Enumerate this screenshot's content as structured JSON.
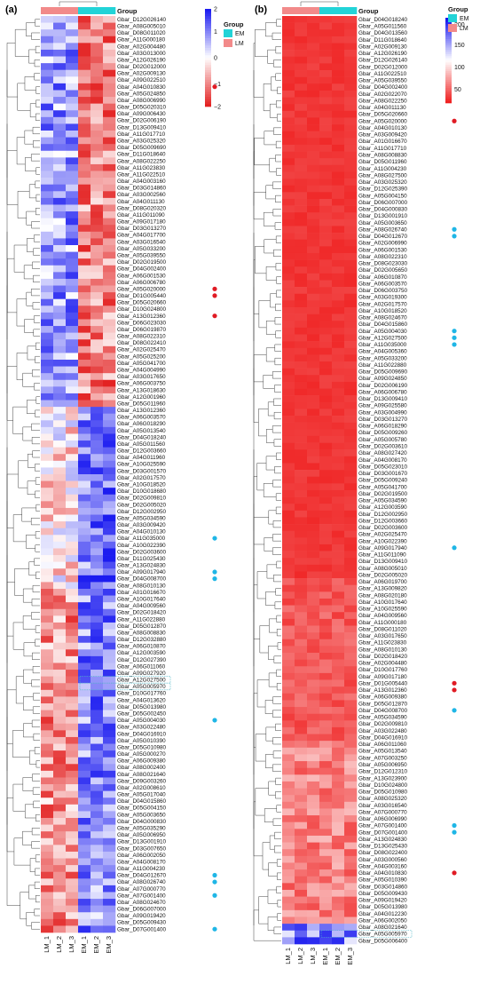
{
  "panel_a": {
    "label": "(a)",
    "group_title": "Group",
    "group_labels": [
      "EM",
      "LM"
    ],
    "group_colors": {
      "EM": "#22d3d7",
      "LM": "#f28a8a"
    },
    "scale_ticks": [
      "2",
      "1",
      "0",
      "−1",
      "−2"
    ],
    "scale_colors": [
      "#e32222",
      "#ffffff",
      "#1c1cf0"
    ]
  },
  "panel_b": {
    "label": "(b)",
    "group_title": "Group",
    "group_labels": [
      "EM",
      "LM"
    ],
    "group_colors": {
      "EM": "#22d3d7",
      "LM": "#f28a8a"
    },
    "scale_ticks": [
      "200",
      "150",
      "100",
      "50"
    ],
    "scale_colors": [
      "#ef2020",
      "#ffffff",
      "#1212ee"
    ]
  },
  "chart_data": [
    {
      "type": "heatmap",
      "panel": "(a)",
      "columns": [
        "LM_1",
        "LM_2",
        "LM_3",
        "EM_1",
        "EM_2",
        "EM_3"
      ],
      "column_groups": [
        "LM",
        "LM",
        "LM",
        "EM",
        "EM",
        "EM"
      ],
      "rows": [
        "Gbar_D12G026140",
        "Gbar_A08G005010",
        "Gbar_D08G011020",
        "Gbar_A11G000180",
        "Gbar_A02G004480",
        "Gbar_A03G013000",
        "Gbar_A12G026190",
        "Gbar_D02G012000",
        "Gbar_A02G009130",
        "Gbar_A09G022510",
        "Gbar_A04G010830",
        "Gbar_A05G024850",
        "Gbar_A08G006990",
        "Gbar_D05G020310",
        "Gbar_A09G006430",
        "Gbar_D02G006190",
        "Gbar_D13G009410",
        "Gbar_A11G017710",
        "Gbar_A03G025320",
        "Gbar_D05G009690",
        "Gbar_D11G018640",
        "Gbar_A08G022250",
        "Gbar_A11G023830",
        "Gbar_A11G022510",
        "Gbar_A04G003160",
        "Gbar_D03G014860",
        "Gbar_A03G002560",
        "Gbar_A04G011130",
        "Gbar_D08G020320",
        "Gbar_A11G011090",
        "Gbar_A09G017180",
        "Gbar_D03G013270",
        "Gbar_A04G017700",
        "Gbar_A03G016540",
        "Gbar_A05G033200",
        "Gbar_A05G039550",
        "Gbar_D02G019500",
        "Gbar_D04G002400",
        "Gbar_A06G001530",
        "Gbar_A06G006780",
        "Gbar_A05G020000",
        "Gbar_D01G005440",
        "Gbar_D05G020660",
        "Gbar_D10G024800",
        "Gbar_A13G012360",
        "Gbar_D06G023030",
        "Gbar_D06G019870",
        "Gbar_A08G022310",
        "Gbar_D08G022410",
        "Gbar_A02G025470",
        "Gbar_A05G025200",
        "Gbar_A05G041700",
        "Gbar_A04G004990",
        "Gbar_A03G017650",
        "Gbar_A06G003750",
        "Gbar_A13G018630",
        "Gbar_A12G001960",
        "Gbar_D05G011960",
        "Gbar_A13G012360",
        "Gbar_A06G003570",
        "Gbar_A06G018290",
        "Gbar_A05G013540",
        "Gbar_D04G018240",
        "Gbar_A05G011560",
        "Gbar_D12G003660",
        "Gbar_A04G011960",
        "Gbar_A10G025590",
        "Gbar_D03G001570",
        "Gbar_A02G017570",
        "Gbar_A10G018520",
        "Gbar_D10G018680",
        "Gbar_D02G009810",
        "Gbar_D02G005020",
        "Gbar_D12G002950",
        "Gbar_A05G034590",
        "Gbar_A03G009420",
        "Gbar_A04G010130",
        "Gbar_A11G035000",
        "Gbar_A10G022390",
        "Gbar_D02G003600",
        "Gbar_D11G025430",
        "Gbar_A13G024830",
        "Gbar_A09G017940",
        "Gbar_D04G008700",
        "Gbar_A08G010130",
        "Gbar_A01G016670",
        "Gbar_A10G017640",
        "Gbar_A04G009560",
        "Gbar_D02G018420",
        "Gbar_A11G022880",
        "Gbar_D05G012870",
        "Gbar_A08G008830",
        "Gbar_D12G032880",
        "Gbar_A06G010870",
        "Gbar_A12G003590",
        "Gbar_D12G027390",
        "Gbar_A06G011060",
        "Gbar_A09G027920",
        "Gbar_A12G027500",
        "Gbar_A05G005970",
        "Gbar_D10G017760",
        "Gbar_A04G013620",
        "Gbar_D05G013980",
        "Gbar_D05G002450",
        "Gbar_A05G004030",
        "Gbar_A03G022480",
        "Gbar_D04G016910",
        "Gbar_A05G010390",
        "Gbar_D05G010980",
        "Gbar_A05G000270",
        "Gbar_A06G009380",
        "Gbar_A08G002400",
        "Gbar_A08G021640",
        "Gbar_D09G003260",
        "Gbar_A02G008610",
        "Gbar_A05G017040",
        "Gbar_D04G015860",
        "Gbar_D05G004150",
        "Gbar_A05G003650",
        "Gbar_D04G000830",
        "Gbar_A05G035290",
        "Gbar_A05G006950",
        "Gbar_D13G001910",
        "Gbar_D03G007650",
        "Gbar_A06G002050",
        "Gbar_A04G008170",
        "Gbar_A11G004230",
        "Gbar_D04G012670",
        "Gbar_A08G026740",
        "Gbar_A07G000770",
        "Gbar_A07G001400",
        "Gbar_A08G024670",
        "Gbar_D06G007000",
        "Gbar_A09G019420",
        "Gbar_D05G009430",
        "Gbar_D07G001400"
      ],
      "values": [],
      "values_note": "",
      "color_scale": {
        "min": -2,
        "max": 2,
        "low": "blue",
        "mid": "white",
        "high": "red"
      },
      "marked_rows": [
        {
          "gene": "Gbar_A04G010830",
          "marker": "red"
        },
        {
          "gene": "Gbar_A05G020000",
          "marker": "red"
        },
        {
          "gene": "Gbar_D01G005440",
          "marker": "red"
        },
        {
          "gene": "Gbar_A13G012360",
          "marker": "red"
        },
        {
          "gene": "Gbar_A11G035000",
          "marker": "cyan"
        },
        {
          "gene": "Gbar_A09G017940",
          "marker": "cyan"
        },
        {
          "gene": "Gbar_D04G008700",
          "marker": "cyan"
        },
        {
          "gene": "Gbar_A05G004030",
          "marker": "cyan"
        },
        {
          "gene": "Gbar_D04G012670",
          "marker": "cyan"
        },
        {
          "gene": "Gbar_A08G026740",
          "marker": "cyan"
        },
        {
          "gene": "Gbar_A07G001400",
          "marker": "cyan"
        },
        {
          "gene": "Gbar_D07G001400",
          "marker": "cyan"
        }
      ],
      "boxed_rows": [
        "Gbar_A12G027500",
        "Gbar_A05G005970"
      ]
    },
    {
      "type": "heatmap",
      "panel": "(b)",
      "columns": [
        "LM_1",
        "LM_2",
        "LM_3",
        "EM_1",
        "EM_2",
        "EM_3"
      ],
      "column_groups": [
        "LM",
        "LM",
        "LM",
        "EM",
        "EM",
        "EM"
      ],
      "rows": [
        "Gbar_D04G018240",
        "Gbar_A05G011560",
        "Gbar_D04G013560",
        "Gbar_D11G018640",
        "Gbar_A02G009130",
        "Gbar_A12G026190",
        "Gbar_D12G026140",
        "Gbar_D02G012000",
        "Gbar_A11G022510",
        "Gbar_A05G039550",
        "Gbar_D04G002400",
        "Gbar_A02G022070",
        "Gbar_A08G022250",
        "Gbar_A04G011130",
        "Gbar_D05G020660",
        "Gbar_A05G020000",
        "Gbar_A04G010130",
        "Gbar_A03G009420",
        "Gbar_A01G016670",
        "Gbar_A11G017710",
        "Gbar_A08G008830",
        "Gbar_D05G011960",
        "Gbar_A11G004230",
        "Gbar_A08G027500",
        "Gbar_A03G025320",
        "Gbar_D12G025390",
        "Gbar_A05G004150",
        "Gbar_D06G007000",
        "Gbar_D04G000830",
        "Gbar_D13G001910",
        "Gbar_A05G003650",
        "Gbar_A08G026740",
        "Gbar_D04G012670",
        "Gbar_A02G006990",
        "Gbar_A06G001530",
        "Gbar_A08G022310",
        "Gbar_D08G023030",
        "Gbar_D02G005650",
        "Gbar_A06G010870",
        "Gbar_A06G003570",
        "Gbar_D06G003750",
        "Gbar_A03G019300",
        "Gbar_A02G017570",
        "Gbar_A10G018520",
        "Gbar_A08G024670",
        "Gbar_D04G015860",
        "Gbar_A05G004030",
        "Gbar_A12G027500",
        "Gbar_A11G035000",
        "Gbar_A04G005360",
        "Gbar_A05G033200",
        "Gbar_A11G022880",
        "Gbar_D05G009690",
        "Gbar_A09G024850",
        "Gbar_D02G006190",
        "Gbar_A06G006780",
        "Gbar_D13G009410",
        "Gbar_A09G025580",
        "Gbar_A03G004990",
        "Gbar_D03G013270",
        "Gbar_A06G018290",
        "Gbar_D05G009260",
        "Gbar_A05G005780",
        "Gbar_D02G003610",
        "Gbar_A08G027420",
        "Gbar_A04G008170",
        "Gbar_D05G023010",
        "Gbar_D03G001670",
        "Gbar_D05G009240",
        "Gbar_A05G041700",
        "Gbar_D02G019500",
        "Gbar_A05G034590",
        "Gbar_A12G003590",
        "Gbar_D12G002950",
        "Gbar_D12G003660",
        "Gbar_D02G003600",
        "Gbar_A02G025470",
        "Gbar_A10G022390",
        "Gbar_A09G017940",
        "Gbar_A11G011090",
        "Gbar_D13G009410",
        "Gbar_A08G005010",
        "Gbar_D02G005020",
        "Gbar_A06G019700",
        "Gbar_A13G009820",
        "Gbar_A08G020180",
        "Gbar_A10G017640",
        "Gbar_A10G025590",
        "Gbar_A04G009560",
        "Gbar_A11G000180",
        "Gbar_D08G011020",
        "Gbar_A03G017650",
        "Gbar_A11G023830",
        "Gbar_A08G010130",
        "Gbar_D02G018420",
        "Gbar_A02G004480",
        "Gbar_D10G017760",
        "Gbar_A09G017180",
        "Gbar_D01G005440",
        "Gbar_A13G012360",
        "Gbar_A06G009380",
        "Gbar_D05G012870",
        "Gbar_D04G008700",
        "Gbar_A05G034590",
        "Gbar_D02G009810",
        "Gbar_A03G022480",
        "Gbar_D04G016910",
        "Gbar_A06G011060",
        "Gbar_A05G013540",
        "Gbar_A07G003250",
        "Gbar_A05G006950",
        "Gbar_D12G012310",
        "Gbar_A13G023900",
        "Gbar_D10G024800",
        "Gbar_D05G010980",
        "Gbar_A08G025320",
        "Gbar_A03G016540",
        "Gbar_A07G000770",
        "Gbar_A06G006990",
        "Gbar_A07G001400",
        "Gbar_D07G001400",
        "Gbar_A13G024830",
        "Gbar_D13G025430",
        "Gbar_D08G022400",
        "Gbar_A03G000560",
        "Gbar_A04G003160",
        "Gbar_A04G010830",
        "Gbar_A05G010390",
        "Gbar_D03G014860",
        "Gbar_D05G009430",
        "Gbar_A09G019420",
        "Gbar_D05G013980",
        "Gbar_A04G012230",
        "Gbar_A06G002050",
        "Gbar_A08G021640",
        "Gbar_A05G005970",
        "Gbar_D05G006400"
      ],
      "values": [],
      "values_note": "",
      "color_scale": {
        "min": 25,
        "max": 240,
        "low": "blue",
        "mid": "white",
        "high": "red"
      },
      "marked_rows": [
        {
          "gene": "Gbar_A05G020000",
          "marker": "red"
        },
        {
          "gene": "Gbar_A08G026740",
          "marker": "cyan"
        },
        {
          "gene": "Gbar_D04G012670",
          "marker": "cyan"
        },
        {
          "gene": "Gbar_A05G004030",
          "marker": "cyan"
        },
        {
          "gene": "Gbar_A12G027500",
          "marker": "cyan"
        },
        {
          "gene": "Gbar_A11G035000",
          "marker": "cyan"
        },
        {
          "gene": "Gbar_A09G017940",
          "marker": "cyan"
        },
        {
          "gene": "Gbar_D01G005440",
          "marker": "red"
        },
        {
          "gene": "Gbar_A13G012360",
          "marker": "red"
        },
        {
          "gene": "Gbar_D04G008700",
          "marker": "cyan"
        },
        {
          "gene": "Gbar_A07G001400",
          "marker": "cyan"
        },
        {
          "gene": "Gbar_D07G001400",
          "marker": "cyan"
        },
        {
          "gene": "Gbar_A04G010830",
          "marker": "red"
        }
      ],
      "boxed_rows": [
        "Gbar_A05G005970"
      ]
    }
  ]
}
